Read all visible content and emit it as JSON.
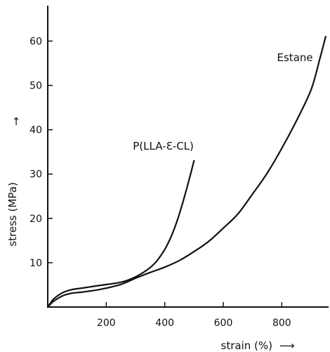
{
  "chart_data": {
    "type": "line",
    "title": "",
    "xlabel": "strain (%)",
    "ylabel": "stress (MPa)",
    "xlim": [
      0,
      960
    ],
    "ylim": [
      0,
      68
    ],
    "x_ticks": [
      {
        "value": 200,
        "label": "200"
      },
      {
        "value": 400,
        "label": "400"
      },
      {
        "value": 600,
        "label": "600"
      },
      {
        "value": 800,
        "label": "800"
      }
    ],
    "y_ticks": [
      {
        "value": 10,
        "label": "10"
      },
      {
        "value": 20,
        "label": "20"
      },
      {
        "value": 30,
        "label": "30"
      },
      {
        "value": 40,
        "label": "40"
      },
      {
        "value": 50,
        "label": "50"
      },
      {
        "value": 60,
        "label": "60"
      }
    ],
    "grid": false,
    "series": [
      {
        "name": "Estane",
        "x": [
          0,
          20,
          50,
          80,
          120,
          180,
          250,
          300,
          350,
          400,
          450,
          500,
          550,
          600,
          650,
          700,
          750,
          800,
          850,
          900,
          930,
          950
        ],
        "y": [
          0,
          1.3,
          2.5,
          3.1,
          3.4,
          4.0,
          5.1,
          6.5,
          7.8,
          9.0,
          10.5,
          12.5,
          14.8,
          17.8,
          21.0,
          25.5,
          30.2,
          35.8,
          42.0,
          49.0,
          56.0,
          61.0
        ]
      },
      {
        "name": "P(LLA-ε-CL)",
        "x": [
          0,
          20,
          50,
          80,
          120,
          180,
          250,
          300,
          350,
          380,
          410,
          440,
          470,
          500
        ],
        "y": [
          0,
          1.8,
          3.2,
          3.9,
          4.3,
          4.9,
          5.6,
          6.8,
          8.9,
          11.0,
          14.2,
          19.0,
          25.5,
          33.0
        ]
      }
    ],
    "annotations": [
      {
        "series": "Estane",
        "text": "Estane",
        "x": 845,
        "y": 55.5
      },
      {
        "series": "P(LLA-ε-CL)",
        "text": "P(LLA-Ɛ-CL)",
        "x": 395,
        "y": 35.5
      }
    ],
    "y_arrow": "↑",
    "x_arrow": "⟶"
  }
}
